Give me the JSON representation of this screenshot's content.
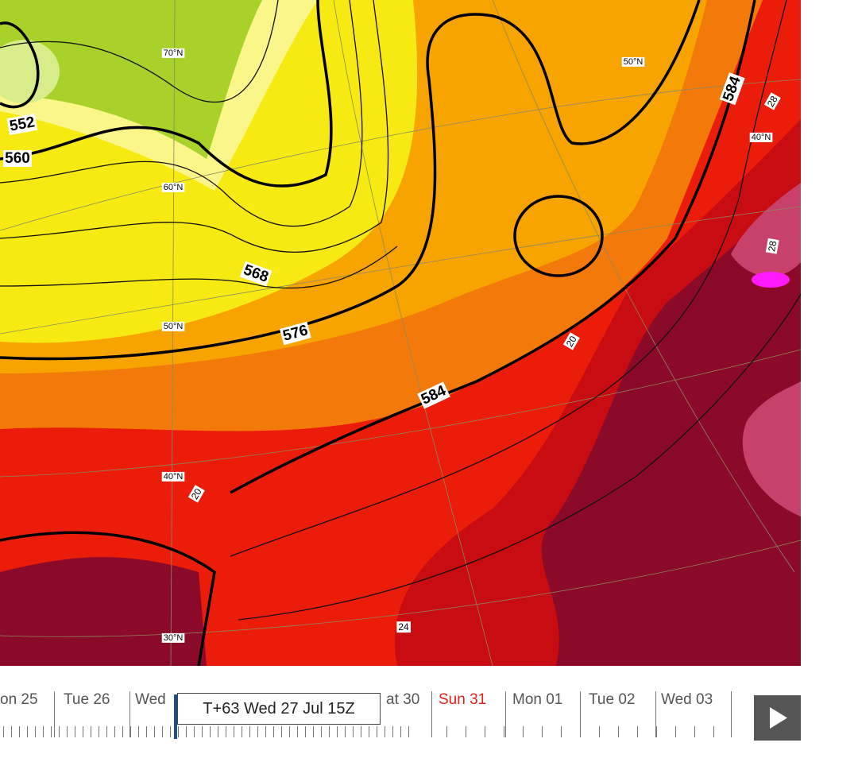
{
  "map": {
    "contour_labels": [
      "552",
      "560",
      "568",
      "576",
      "584",
      "584"
    ],
    "latitude_labels": [
      "70°N",
      "60°N",
      "50°N",
      "40°N",
      "30°N",
      "50°N",
      "40°N"
    ],
    "value_labels": [
      "28",
      "28",
      "20",
      "20",
      "24"
    ]
  },
  "timeline": {
    "days": [
      "on 25",
      "Tue 26",
      "Wed",
      "at 30",
      "Sun 31",
      "Mon 01",
      "Tue 02",
      "Wed 03"
    ],
    "tooltip": "T+63 Wed 27 Jul 15Z"
  }
}
